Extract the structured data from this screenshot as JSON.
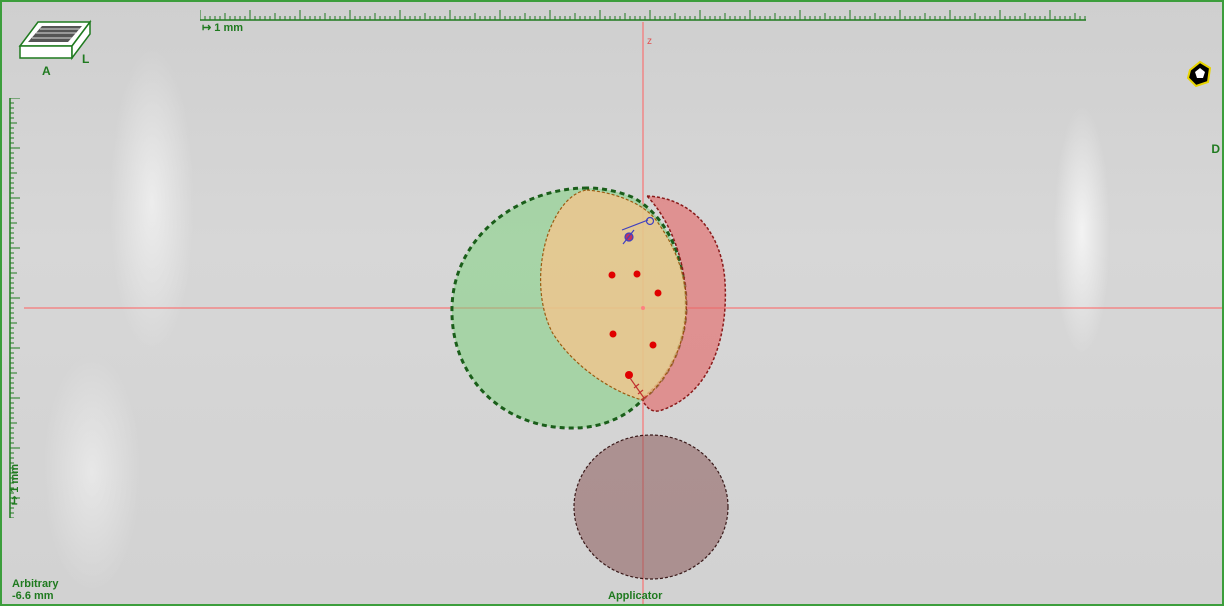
{
  "view": {
    "orientation_cube": {
      "front_letter": "A",
      "side_letter": "L"
    },
    "right_edge_letter": "D",
    "scale_top_label": "↦ 1 mm",
    "scale_left_label": "↦ 1 mm",
    "axis_label": "z",
    "bottom_left": {
      "line1": "Arbitrary",
      "line2": "-6.6 mm"
    },
    "bottom_center": "Applicator"
  },
  "colors": {
    "frame": "#3c9e3c",
    "label_green": "#1f7a1f",
    "crosshair": "#ff6060",
    "structure_green": "#7fd17f",
    "structure_orange": "#f2c58d",
    "structure_red": "#e36b6b",
    "structure_brown": "#8a5a5a",
    "seed_red": "#e00000"
  }
}
